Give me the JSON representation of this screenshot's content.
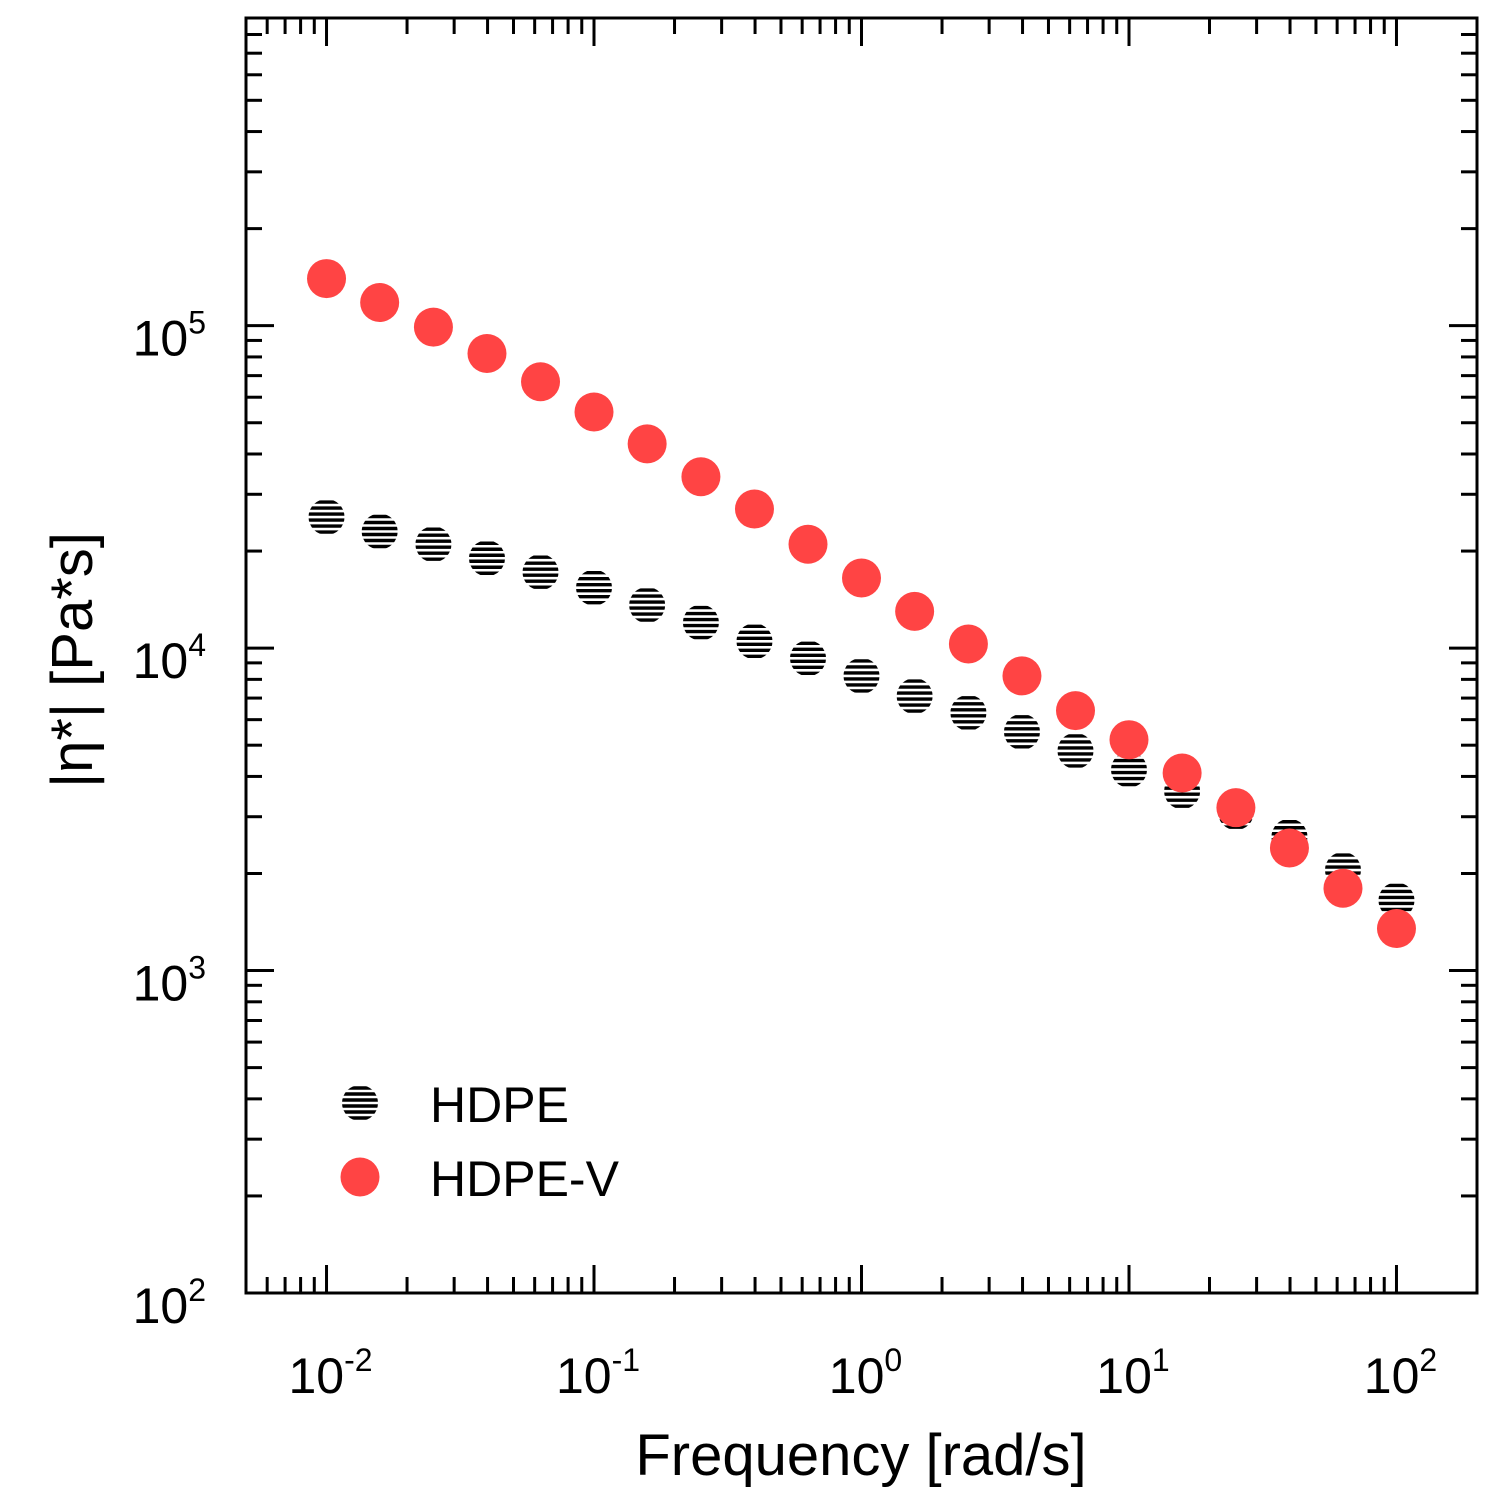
{
  "chart_data": {
    "type": "scatter",
    "title": "",
    "xlabel": "Frequency [rad/s]",
    "ylabel": "|η*| [Pa*s]",
    "xscale": "log",
    "yscale": "log",
    "xlim": [
      0.005,
      200
    ],
    "ylim": [
      100,
      900000
    ],
    "x_ticks": [
      {
        "base": "10",
        "exp": "-2",
        "value": 0.01
      },
      {
        "base": "10",
        "exp": "-1",
        "value": 0.1
      },
      {
        "base": "10",
        "exp": "0",
        "value": 1
      },
      {
        "base": "10",
        "exp": "1",
        "value": 10
      },
      {
        "base": "10",
        "exp": "2",
        "value": 100
      }
    ],
    "y_ticks": [
      {
        "base": "10",
        "exp": "2",
        "value": 100
      },
      {
        "base": "10",
        "exp": "3",
        "value": 1000
      },
      {
        "base": "10",
        "exp": "4",
        "value": 10000
      },
      {
        "base": "10",
        "exp": "5",
        "value": 100000
      }
    ],
    "legend_position": "bottom-left",
    "x": [
      0.01,
      0.0158,
      0.0251,
      0.0398,
      0.0631,
      0.1,
      0.158,
      0.251,
      0.398,
      0.631,
      1,
      1.58,
      2.51,
      3.98,
      6.31,
      10,
      15.8,
      25.1,
      39.8,
      63.1,
      100
    ],
    "series": [
      {
        "name": "HDPE",
        "marker": "hatched-circle",
        "color": "#000000",
        "values": [
          25500,
          23000,
          21000,
          19000,
          17200,
          15400,
          13600,
          12000,
          10500,
          9300,
          8200,
          7100,
          6300,
          5500,
          4800,
          4200,
          3600,
          3100,
          2600,
          2050,
          1650
        ]
      },
      {
        "name": "HDPE-V",
        "marker": "filled-circle",
        "color": "#ff4444",
        "values": [
          140000,
          118000,
          99000,
          82000,
          67000,
          54000,
          43000,
          34000,
          27000,
          21000,
          16500,
          13000,
          10300,
          8200,
          6400,
          5200,
          4100,
          3200,
          2400,
          1800,
          1350
        ]
      }
    ]
  }
}
